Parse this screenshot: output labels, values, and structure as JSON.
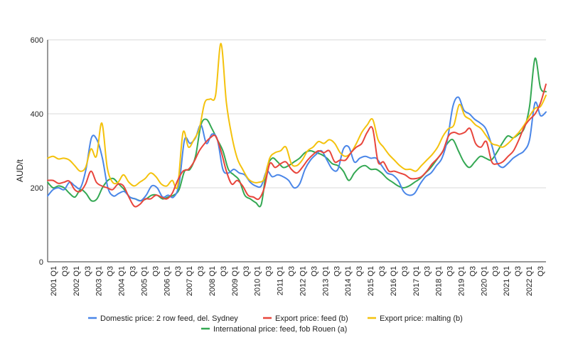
{
  "chart_data": {
    "type": "line",
    "title": "",
    "xlabel": "",
    "ylabel": "AUD/t",
    "ylim": [
      0,
      600
    ],
    "yticks": [
      "0",
      "200",
      "400",
      "600"
    ],
    "grid": "horizontal",
    "legend_placement": "bottom",
    "colors": {
      "domestic": "#4a86e8",
      "feed": "#e8453c",
      "malting": "#f4c20d",
      "international": "#34a853"
    },
    "xtick_labels": [
      "2001 Q1",
      "Q3",
      "2002 Q1",
      "Q3",
      "2003 Q1",
      "Q3",
      "2004 Q1",
      "Q3",
      "2005 Q1",
      "Q3",
      "2006 Q1",
      "Q3",
      "2007 Q1",
      "Q3",
      "2008 Q1",
      "Q3",
      "2009 Q1",
      "Q3",
      "2010 Q1",
      "Q3",
      "2011 Q1",
      "Q3",
      "2012 Q1",
      "Q3",
      "2013 Q1",
      "Q3",
      "2014 Q1",
      "Q3",
      "2015 Q1",
      "Q3",
      "2016 Q1",
      "Q3",
      "2017 Q1",
      "Q3",
      "2018 Q1",
      "Q3",
      "2019 Q1",
      "Q3",
      "2020 Q1",
      "Q3",
      "2021 Q1",
      "Q3",
      "2022 Q1",
      "Q3"
    ],
    "series": [
      {
        "name": "Domestic price: 2 row feed, del. Sydney",
        "color": "#4a86e8",
        "values": [
          178,
          195,
          200,
          195,
          215,
          205,
          200,
          250,
          335,
          330,
          280,
          200,
          178,
          185,
          190,
          175,
          170,
          165,
          180,
          205,
          200,
          175,
          180,
          175,
          210,
          330,
          320,
          335,
          370,
          320,
          345,
          330,
          250,
          240,
          250,
          240,
          235,
          215,
          205,
          205,
          245,
          230,
          235,
          230,
          220,
          200,
          210,
          250,
          275,
          290,
          300,
          275,
          250,
          250,
          305,
          310,
          270,
          280,
          285,
          280,
          280,
          260,
          240,
          235,
          220,
          190,
          180,
          185,
          210,
          230,
          240,
          260,
          280,
          330,
          420,
          445,
          410,
          400,
          385,
          375,
          360,
          320,
          270,
          255,
          265,
          280,
          290,
          300,
          330,
          430,
          395,
          405
        ]
      },
      {
        "name": "Export price: feed (b)",
        "color": "#e8453c",
        "values": [
          220,
          220,
          212,
          215,
          218,
          195,
          190,
          210,
          245,
          215,
          205,
          200,
          195,
          210,
          205,
          175,
          150,
          155,
          170,
          170,
          180,
          175,
          170,
          185,
          220,
          245,
          250,
          270,
          300,
          320,
          335,
          340,
          300,
          245,
          210,
          220,
          205,
          180,
          175,
          170,
          200,
          265,
          255,
          265,
          270,
          250,
          240,
          255,
          275,
          290,
          300,
          295,
          300,
          270,
          275,
          275,
          295,
          310,
          320,
          350,
          360,
          270,
          270,
          245,
          245,
          240,
          235,
          225,
          225,
          230,
          245,
          265,
          280,
          300,
          340,
          350,
          345,
          350,
          360,
          320,
          310,
          325,
          270,
          265,
          270,
          285,
          300,
          330,
          365,
          385,
          400,
          430,
          480
        ]
      },
      {
        "name": "Export price: malting (b)",
        "color": "#f4c20d",
        "values": [
          280,
          285,
          278,
          280,
          275,
          260,
          245,
          255,
          305,
          285,
          375,
          255,
          215,
          215,
          235,
          215,
          205,
          215,
          225,
          240,
          230,
          210,
          205,
          220,
          205,
          350,
          310,
          330,
          360,
          430,
          440,
          450,
          590,
          430,
          340,
          280,
          250,
          225,
          215,
          215,
          225,
          280,
          295,
          300,
          310,
          265,
          260,
          275,
          300,
          310,
          325,
          320,
          330,
          320,
          295,
          285,
          295,
          320,
          350,
          370,
          385,
          330,
          310,
          290,
          275,
          260,
          250,
          250,
          245,
          260,
          275,
          290,
          310,
          340,
          360,
          370,
          425,
          395,
          385,
          370,
          360,
          340,
          320,
          315,
          310,
          320,
          335,
          350,
          370,
          395,
          415,
          420,
          450
        ]
      },
      {
        "name": "International price: feed, fob Rouen (a)",
        "color": "#34a853",
        "values": [
          215,
          200,
          205,
          200,
          185,
          175,
          195,
          185,
          165,
          170,
          200,
          220,
          225,
          210,
          195,
          175,
          170,
          165,
          170,
          180,
          180,
          170,
          175,
          180,
          195,
          245,
          250,
          285,
          370,
          385,
          360,
          330,
          300,
          250,
          235,
          220,
          180,
          170,
          160,
          155,
          250,
          280,
          270,
          255,
          260,
          270,
          280,
          295,
          300,
          295,
          290,
          280,
          265,
          260,
          245,
          220,
          240,
          255,
          260,
          250,
          250,
          240,
          225,
          215,
          205,
          200,
          205,
          215,
          225,
          240,
          255,
          275,
          295,
          320,
          330,
          300,
          270,
          255,
          270,
          285,
          280,
          275,
          295,
          320,
          340,
          335,
          345,
          360,
          420,
          550,
          470,
          460
        ]
      }
    ]
  }
}
